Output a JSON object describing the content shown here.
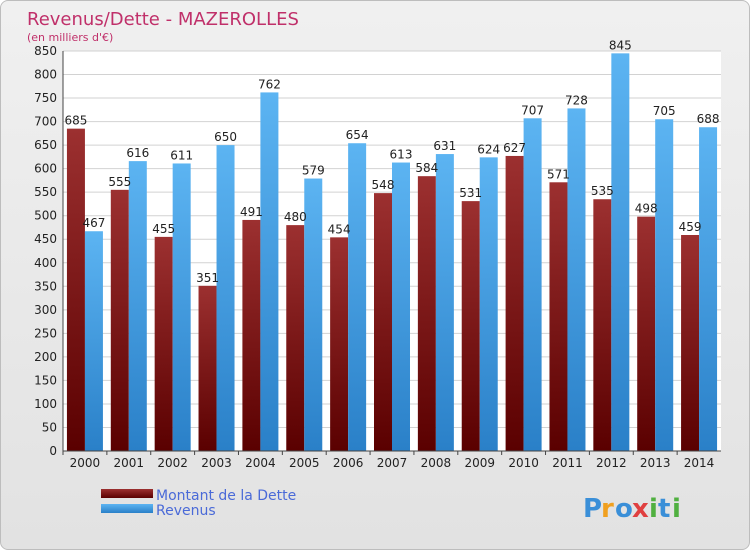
{
  "chart_data": {
    "type": "bar",
    "title": "Revenus/Dette - MAZEROLLES",
    "subtitle": "(en milliers d'€)",
    "categories": [
      "2000",
      "2001",
      "2002",
      "2003",
      "2004",
      "2005",
      "2006",
      "2007",
      "2008",
      "2009",
      "2010",
      "2011",
      "2012",
      "2013",
      "2014"
    ],
    "series": [
      {
        "name": "Montant de la Dette",
        "color": "#8b1a1a",
        "values": [
          685,
          555,
          455,
          351,
          491,
          480,
          454,
          548,
          584,
          531,
          627,
          571,
          535,
          498,
          459
        ]
      },
      {
        "name": "Revenus",
        "color": "#3aa0e8",
        "values": [
          467,
          616,
          611,
          650,
          762,
          579,
          654,
          613,
          631,
          624,
          707,
          728,
          845,
          705,
          688
        ]
      }
    ],
    "ylim": [
      0,
      850
    ],
    "ytick_step": 50,
    "grid": true,
    "legend": "bottom-left",
    "logo": "Proxiti"
  }
}
